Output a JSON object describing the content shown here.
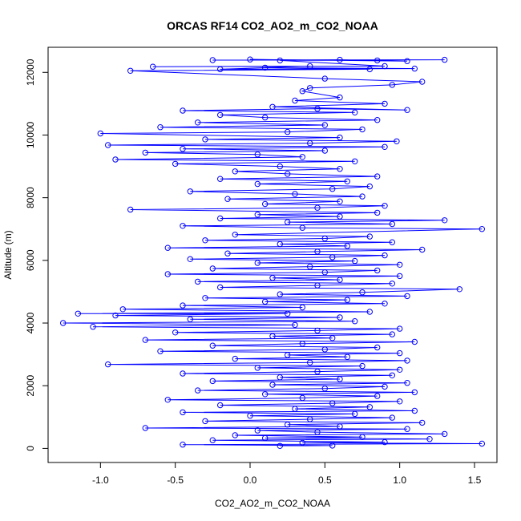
{
  "chart_data": {
    "type": "scatter",
    "title": "ORCAS RF14 CO2_AO2_m_CO2_NOAA",
    "xlabel": "CO2_AO2_m_CO2_NOAA",
    "ylabel": "Altitude (m)",
    "xlim": [
      -1.35,
      1.65
    ],
    "ylim": [
      -450,
      12800
    ],
    "x_ticks": [
      -1.0,
      -0.5,
      0.0,
      0.5,
      1.0,
      1.5
    ],
    "x_tick_labels": [
      "-1.0",
      "-0.5",
      "0.0",
      "0.5",
      "1.0",
      "1.5"
    ],
    "y_ticks": [
      0,
      2000,
      4000,
      6000,
      8000,
      10000,
      12000
    ],
    "y_tick_labels": [
      "0",
      "2000",
      "4000",
      "6000",
      "8000",
      "10000",
      "12000"
    ],
    "series_color": "#0000ff",
    "marker": "open-circle",
    "connected": true,
    "grid": false,
    "points": [
      [
        0.2,
        80
      ],
      [
        0.55,
        90
      ],
      [
        -0.45,
        120
      ],
      [
        1.55,
        150
      ],
      [
        0.35,
        180
      ],
      [
        0.9,
        200
      ],
      [
        -0.25,
        260
      ],
      [
        1.2,
        300
      ],
      [
        0.1,
        330
      ],
      [
        0.75,
        360
      ],
      [
        -0.1,
        420
      ],
      [
        1.3,
        460
      ],
      [
        0.45,
        520
      ],
      [
        0.05,
        570
      ],
      [
        1.05,
        620
      ],
      [
        -0.7,
        650
      ],
      [
        0.6,
        700
      ],
      [
        0.25,
        760
      ],
      [
        1.15,
        820
      ],
      [
        -0.3,
        870
      ],
      [
        0.4,
        930
      ],
      [
        0.95,
        980
      ],
      [
        0.0,
        1040
      ],
      [
        0.7,
        1100
      ],
      [
        -0.45,
        1150
      ],
      [
        1.1,
        1200
      ],
      [
        0.3,
        1260
      ],
      [
        0.8,
        1320
      ],
      [
        -0.2,
        1380
      ],
      [
        0.55,
        1440
      ],
      [
        1.0,
        1500
      ],
      [
        -0.55,
        1550
      ],
      [
        0.35,
        1610
      ],
      [
        0.85,
        1670
      ],
      [
        0.1,
        1730
      ],
      [
        1.1,
        1790
      ],
      [
        -0.35,
        1850
      ],
      [
        0.5,
        1910
      ],
      [
        0.9,
        1970
      ],
      [
        0.15,
        2030
      ],
      [
        1.05,
        2090
      ],
      [
        -0.25,
        2150
      ],
      [
        0.6,
        2210
      ],
      [
        0.2,
        2270
      ],
      [
        0.95,
        2330
      ],
      [
        -0.45,
        2390
      ],
      [
        0.45,
        2450
      ],
      [
        1.0,
        2510
      ],
      [
        0.05,
        2570
      ],
      [
        0.75,
        2630
      ],
      [
        -0.95,
        2680
      ],
      [
        0.4,
        2740
      ],
      [
        1.05,
        2800
      ],
      [
        -0.1,
        2860
      ],
      [
        0.65,
        2920
      ],
      [
        0.25,
        2980
      ],
      [
        1.0,
        3040
      ],
      [
        -0.6,
        3100
      ],
      [
        0.5,
        3160
      ],
      [
        0.85,
        3220
      ],
      [
        -0.25,
        3280
      ],
      [
        0.35,
        3340
      ],
      [
        1.1,
        3400
      ],
      [
        -0.7,
        3460
      ],
      [
        0.55,
        3520
      ],
      [
        0.15,
        3580
      ],
      [
        0.95,
        3640
      ],
      [
        -0.5,
        3700
      ],
      [
        0.45,
        3760
      ],
      [
        1.0,
        3820
      ],
      [
        -1.05,
        3880
      ],
      [
        0.3,
        3940
      ],
      [
        -1.25,
        4000
      ],
      [
        0.7,
        4060
      ],
      [
        -0.4,
        4120
      ],
      [
        0.6,
        4180
      ],
      [
        -0.9,
        4240
      ],
      [
        0.25,
        4300
      ],
      [
        -1.15,
        4300
      ],
      [
        0.8,
        4360
      ],
      [
        -0.85,
        4440
      ],
      [
        0.35,
        4500
      ],
      [
        -0.45,
        4560
      ],
      [
        0.9,
        4620
      ],
      [
        0.1,
        4680
      ],
      [
        0.65,
        4740
      ],
      [
        -0.3,
        4800
      ],
      [
        1.05,
        4860
      ],
      [
        0.2,
        4920
      ],
      [
        0.75,
        4980
      ],
      [
        1.4,
        5080
      ],
      [
        -0.2,
        5140
      ],
      [
        0.45,
        5200
      ],
      [
        0.95,
        5260
      ],
      [
        -0.35,
        5320
      ],
      [
        0.6,
        5380
      ],
      [
        0.15,
        5440
      ],
      [
        1.0,
        5500
      ],
      [
        -0.55,
        5560
      ],
      [
        0.5,
        5620
      ],
      [
        0.85,
        5680
      ],
      [
        -0.25,
        5740
      ],
      [
        0.4,
        5800
      ],
      [
        1.0,
        5860
      ],
      [
        0.05,
        5920
      ],
      [
        0.7,
        5980
      ],
      [
        -0.4,
        6040
      ],
      [
        0.55,
        6100
      ],
      [
        0.9,
        6160
      ],
      [
        -0.15,
        6220
      ],
      [
        0.45,
        6280
      ],
      [
        1.15,
        6340
      ],
      [
        -0.55,
        6400
      ],
      [
        0.65,
        6460
      ],
      [
        0.2,
        6520
      ],
      [
        0.95,
        6580
      ],
      [
        -0.3,
        6640
      ],
      [
        0.5,
        6700
      ],
      [
        0.8,
        6760
      ],
      [
        -0.1,
        6820
      ],
      [
        1.55,
        7000
      ],
      [
        0.35,
        7040
      ],
      [
        -0.45,
        7100
      ],
      [
        0.95,
        7160
      ],
      [
        0.25,
        7220
      ],
      [
        1.3,
        7280
      ],
      [
        -0.2,
        7340
      ],
      [
        0.6,
        7400
      ],
      [
        0.05,
        7460
      ],
      [
        0.85,
        7520
      ],
      [
        -0.8,
        7620
      ],
      [
        0.45,
        7680
      ],
      [
        0.9,
        7740
      ],
      [
        0.1,
        7800
      ],
      [
        0.6,
        7880
      ],
      [
        -0.15,
        7960
      ],
      [
        0.75,
        8040
      ],
      [
        0.3,
        8120
      ],
      [
        -0.4,
        8200
      ],
      [
        0.55,
        8280
      ],
      [
        0.8,
        8360
      ],
      [
        0.05,
        8440
      ],
      [
        0.65,
        8520
      ],
      [
        -0.2,
        8600
      ],
      [
        0.85,
        8680
      ],
      [
        0.25,
        8760
      ],
      [
        -0.1,
        8840
      ],
      [
        0.6,
        8920
      ],
      [
        0.2,
        9000
      ],
      [
        -0.5,
        9080
      ],
      [
        0.7,
        9160
      ],
      [
        -0.9,
        9220
      ],
      [
        0.35,
        9300
      ],
      [
        0.05,
        9380
      ],
      [
        -0.7,
        9440
      ],
      [
        0.5,
        9500
      ],
      [
        -0.45,
        9560
      ],
      [
        0.9,
        9620
      ],
      [
        -0.95,
        9680
      ],
      [
        0.4,
        9740
      ],
      [
        0.98,
        9800
      ],
      [
        -0.3,
        9860
      ],
      [
        0.6,
        9920
      ],
      [
        -1.0,
        10050
      ],
      [
        0.25,
        10100
      ],
      [
        0.75,
        10180
      ],
      [
        -0.6,
        10250
      ],
      [
        0.5,
        10320
      ],
      [
        -0.35,
        10400
      ],
      [
        0.85,
        10480
      ],
      [
        0.1,
        10560
      ],
      [
        -0.2,
        10640
      ],
      [
        0.7,
        10720
      ],
      [
        -0.45,
        10780
      ],
      [
        0.45,
        10840
      ],
      [
        1.05,
        10800
      ],
      [
        0.15,
        10900
      ],
      [
        0.9,
        11000
      ],
      [
        0.3,
        11100
      ],
      [
        0.6,
        11200
      ],
      [
        0.35,
        11400
      ],
      [
        0.4,
        11500
      ],
      [
        0.95,
        11600
      ],
      [
        1.15,
        11700
      ],
      [
        0.5,
        11800
      ],
      [
        -0.8,
        12050
      ],
      [
        0.8,
        12100
      ],
      [
        0.1,
        12150
      ],
      [
        1.1,
        12120
      ],
      [
        -0.2,
        12100
      ],
      [
        0.4,
        12200
      ],
      [
        -0.65,
        12180
      ],
      [
        0.9,
        12200
      ],
      [
        0.2,
        12380
      ],
      [
        1.3,
        12400
      ],
      [
        -0.25,
        12390
      ],
      [
        0.6,
        12400
      ],
      [
        1.05,
        12360
      ],
      [
        0.0,
        12410
      ],
      [
        0.85,
        12380
      ]
    ]
  }
}
